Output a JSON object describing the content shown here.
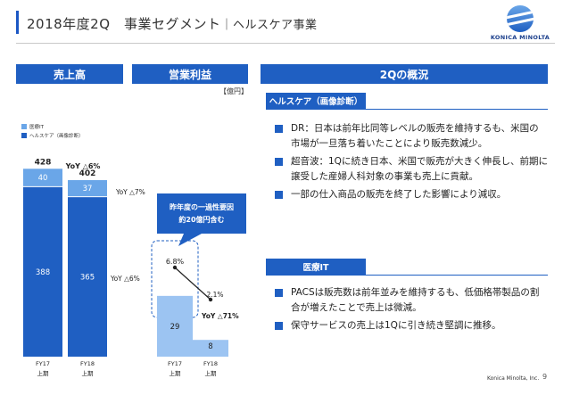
{
  "slide": {
    "title": "2018年度2Q　事業セグメント",
    "subtitle": "｜ヘルスケア事業",
    "logo_text": "KONICA MINOLTA",
    "footer_brand": "Konica Minolta, Inc.",
    "page_number": "9"
  },
  "headers": {
    "sales": "売上高",
    "operating_profit": "営業利益",
    "q2_overview": "2Qの概況"
  },
  "unit_label": "【億円】",
  "legend": [
    {
      "label": "医療IT",
      "color": "#6aa6e8"
    },
    {
      "label": "ヘルスケア（画像診断）",
      "color": "#1f5fc2"
    }
  ],
  "chart_data": [
    {
      "type": "bar",
      "title": "売上高",
      "categories": [
        "FY17\n上期",
        "FY18\n上期"
      ],
      "series": [
        {
          "name": "ヘルスケア（画像診断）",
          "values": [
            388,
            365
          ]
        },
        {
          "name": "医療IT",
          "values": [
            40,
            37
          ]
        }
      ],
      "totals": [
        428,
        402
      ],
      "annotations": [
        "YoY △6%",
        "YoY △7%",
        "YoY △6%"
      ]
    },
    {
      "type": "bar",
      "title": "営業利益",
      "categories": [
        "FY17\n上期",
        "FY18\n上期"
      ],
      "values": [
        29,
        8
      ],
      "margin_labels": [
        "6.8%",
        "2.1%"
      ],
      "annotations": [
        "YoY △71%"
      ]
    }
  ],
  "sales_chart": {
    "categories": [
      {
        "line1": "FY17",
        "line2": "上期"
      },
      {
        "line1": "FY18",
        "line2": "上期"
      }
    ],
    "totals": [
      "428",
      "402"
    ],
    "healthcare": [
      "388",
      "365"
    ],
    "medical_it": [
      "40",
      "37"
    ],
    "yoy_total": "YoY △6%",
    "yoy_it": "YoY △7%",
    "yoy_healthcare": "YoY △6%"
  },
  "op_chart": {
    "categories": [
      {
        "line1": "FY17",
        "line2": "上期"
      },
      {
        "line1": "FY18",
        "line2": "上期"
      }
    ],
    "values": [
      "29",
      "8"
    ],
    "margins": [
      "6.8%",
      "2.1%"
    ],
    "yoy": "YoY △71%",
    "callout_line1": "昨年度の一過性要因",
    "callout_line2": "約20億円含む"
  },
  "colors": {
    "brand_blue": "#1f5fc2",
    "light_blue": "#6aa6e8",
    "pale_blue": "#9cc4f2"
  },
  "sections": [
    {
      "label": "ヘルスケア（画像診断）",
      "bullets": [
        "DR：日本は前年比同等レベルの販売を維持するも、米国の市場が一旦落ち着いたことにより販売数減少。",
        "超音波：1Qに続き日本、米国で販売が大きく伸長し、前期に譲受した産婦人科対象の事業も売上に貢献。",
        "一部の仕入商品の販売を終了した影響により減収。"
      ]
    },
    {
      "label": "医療IT",
      "bullets": [
        "PACSは販売数は前年並みを維持するも、低価格帯製品の割合が増えたことで売上は微減。",
        "保守サービスの売上は1Qに引き続き堅調に推移。"
      ]
    }
  ]
}
